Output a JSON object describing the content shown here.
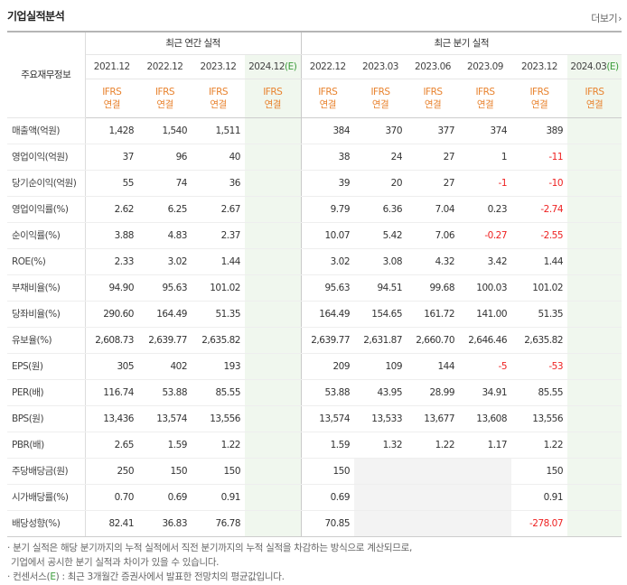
{
  "header": {
    "title": "기업실적분석",
    "more_label": "더보기",
    "more_icon": "›"
  },
  "table": {
    "label_header": "주요재무정보",
    "annual_group": "최근 연간 실적",
    "quarter_group": "최근 분기 실적",
    "periods": [
      {
        "label": "2021.12",
        "estimate": false
      },
      {
        "label": "2022.12",
        "estimate": false
      },
      {
        "label": "2023.12",
        "estimate": false
      },
      {
        "label": "2024.12",
        "estimate": true,
        "estimate_mark": "(E)"
      },
      {
        "label": "2022.12",
        "estimate": false
      },
      {
        "label": "2023.03",
        "estimate": false
      },
      {
        "label": "2023.06",
        "estimate": false
      },
      {
        "label": "2023.09",
        "estimate": false
      },
      {
        "label": "2023.12",
        "estimate": false
      },
      {
        "label": "2024.03",
        "estimate": true,
        "estimate_mark": "(E)"
      }
    ],
    "basis_line1": "IFRS",
    "basis_line2": "연결",
    "rows": [
      {
        "label": "매출액(억원)",
        "values": [
          "1,428",
          "1,540",
          "1,511",
          "",
          "384",
          "370",
          "377",
          "374",
          "389",
          ""
        ]
      },
      {
        "label": "영업이익(억원)",
        "values": [
          "37",
          "96",
          "40",
          "",
          "38",
          "24",
          "27",
          "1",
          "-11",
          ""
        ]
      },
      {
        "label": "당기순이익(억원)",
        "values": [
          "55",
          "74",
          "36",
          "",
          "39",
          "20",
          "27",
          "-1",
          "-10",
          ""
        ]
      },
      {
        "label": "영업이익률(%)",
        "values": [
          "2.62",
          "6.25",
          "2.67",
          "",
          "9.79",
          "6.36",
          "7.04",
          "0.23",
          "-2.74",
          ""
        ]
      },
      {
        "label": "순이익률(%)",
        "values": [
          "3.88",
          "4.83",
          "2.37",
          "",
          "10.07",
          "5.42",
          "7.06",
          "-0.27",
          "-2.55",
          ""
        ]
      },
      {
        "label": "ROE(%)",
        "values": [
          "2.33",
          "3.02",
          "1.44",
          "",
          "3.02",
          "3.08",
          "4.32",
          "3.42",
          "1.44",
          ""
        ]
      },
      {
        "label": "부채비율(%)",
        "values": [
          "94.90",
          "95.63",
          "101.02",
          "",
          "95.63",
          "94.51",
          "99.68",
          "100.03",
          "101.02",
          ""
        ]
      },
      {
        "label": "당좌비율(%)",
        "values": [
          "290.60",
          "164.49",
          "51.35",
          "",
          "164.49",
          "154.65",
          "161.72",
          "141.00",
          "51.35",
          ""
        ]
      },
      {
        "label": "유보율(%)",
        "values": [
          "2,608.73",
          "2,639.77",
          "2,635.82",
          "",
          "2,639.77",
          "2,631.87",
          "2,660.70",
          "2,646.46",
          "2,635.82",
          ""
        ]
      },
      {
        "label": "EPS(원)",
        "values": [
          "305",
          "402",
          "193",
          "",
          "209",
          "109",
          "144",
          "-5",
          "-53",
          ""
        ]
      },
      {
        "label": "PER(배)",
        "values": [
          "116.74",
          "53.88",
          "85.55",
          "",
          "53.88",
          "43.95",
          "28.99",
          "34.91",
          "85.55",
          ""
        ]
      },
      {
        "label": "BPS(원)",
        "values": [
          "13,436",
          "13,574",
          "13,556",
          "",
          "13,574",
          "13,533",
          "13,677",
          "13,608",
          "13,556",
          ""
        ]
      },
      {
        "label": "PBR(배)",
        "values": [
          "2.65",
          "1.59",
          "1.22",
          "",
          "1.59",
          "1.32",
          "1.22",
          "1.17",
          "1.22",
          ""
        ]
      },
      {
        "label": "주당배당금(원)",
        "values": [
          "250",
          "150",
          "150",
          "",
          "150",
          "",
          "",
          "",
          "150",
          ""
        ]
      },
      {
        "label": "시가배당률(%)",
        "values": [
          "0.70",
          "0.69",
          "0.91",
          "",
          "0.69",
          "",
          "",
          "",
          "0.91",
          ""
        ]
      },
      {
        "label": "배당성향(%)",
        "values": [
          "82.41",
          "36.83",
          "76.78",
          "",
          "70.85",
          "",
          "",
          "",
          "-278.07",
          ""
        ]
      }
    ]
  },
  "notes": {
    "line1": "· 분기 실적은 해당 분기까지의 누적 실적에서 직전 분기까지의 누적 실적을 차감하는 방식으로 계산되므로,",
    "line2": "  기업에서 공시한 분기 실적과 차이가 있을 수 있습니다.",
    "line3_prefix": "· 컨센서스(",
    "line3_mark": "E",
    "line3_suffix": ") : 최근 3개월간 증권사에서 발표한 전망치의 평균값입니다."
  }
}
